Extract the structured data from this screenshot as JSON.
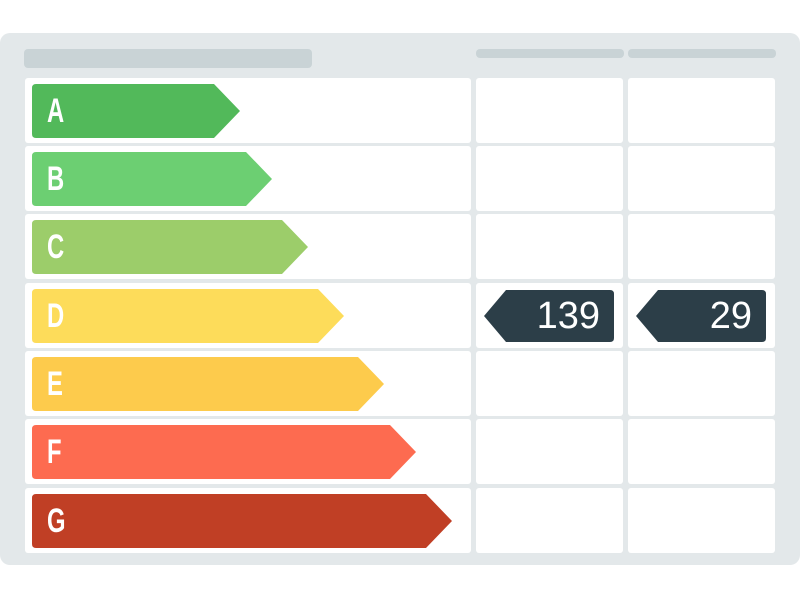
{
  "chart_data": {
    "type": "energy-rating",
    "categories": [
      "A",
      "B",
      "C",
      "D",
      "E",
      "F",
      "G"
    ],
    "colors": [
      "#52b95a",
      "#6ccf72",
      "#9ccd6a",
      "#fddc5a",
      "#fdcb4c",
      "#fd6b50",
      "#c03f25"
    ],
    "indicators": [
      {
        "column": 1,
        "category": "D",
        "value": "139"
      },
      {
        "column": 2,
        "category": "D",
        "value": "29"
      }
    ],
    "indicator_color": "#2c3e48"
  }
}
